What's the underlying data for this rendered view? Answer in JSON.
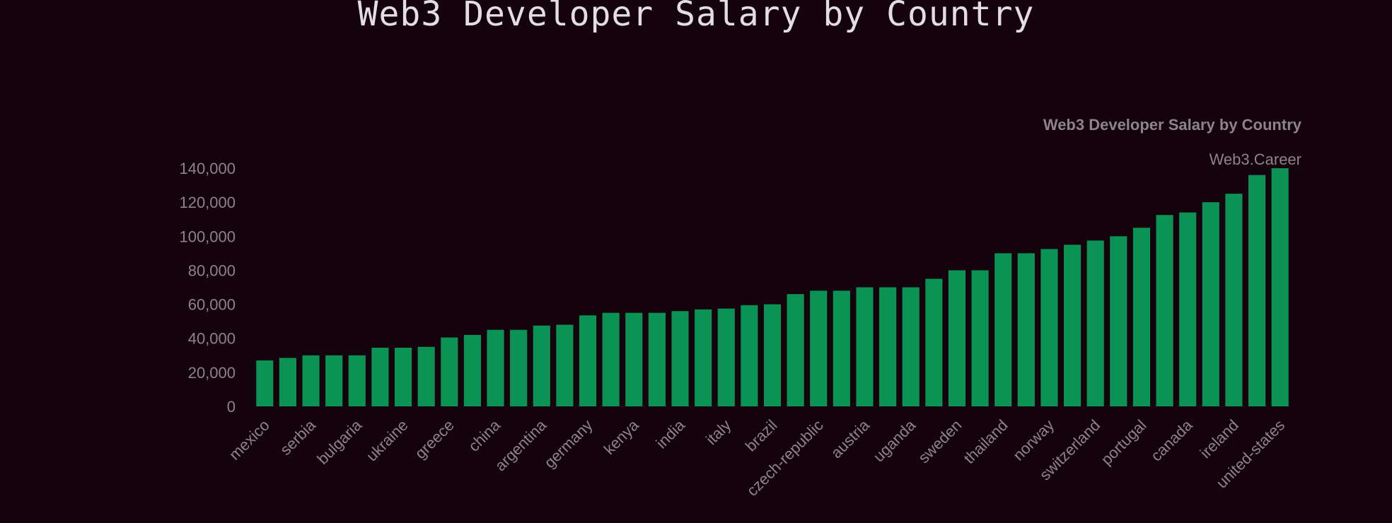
{
  "page": {
    "title": "Web3 Developer Salary by Country"
  },
  "colors": {
    "background": "#14020d",
    "bar": "#0a9354",
    "text": "#8c8488",
    "title": "#e3dee0"
  },
  "chart_data": {
    "type": "bar",
    "title": "Web3 Developer Salary by Country",
    "subtitle": "Web3.Career",
    "xlabel": "",
    "ylabel": "",
    "ylim": [
      0,
      140000
    ],
    "yticks": [
      0,
      20000,
      40000,
      60000,
      80000,
      100000,
      120000,
      140000
    ],
    "ytick_labels": [
      "0",
      "20,000",
      "40,000",
      "60,000",
      "80,000",
      "100,000",
      "120,000",
      "140,000"
    ],
    "grid": false,
    "legend": "none",
    "labeled_every": 2,
    "categories": [
      "mexico",
      "",
      "serbia",
      "",
      "bulgaria",
      "",
      "ukraine",
      "",
      "greece",
      "",
      "china",
      "",
      "argentina",
      "",
      "germany",
      "",
      "kenya",
      "",
      "india",
      "",
      "italy",
      "",
      "brazil",
      "",
      "czech-republic",
      "",
      "austria",
      "",
      "uganda",
      "",
      "sweden",
      "",
      "thailand",
      "",
      "norway",
      "",
      "switzerland",
      "",
      "portugal",
      "",
      "canada",
      "",
      "ireland",
      "",
      "united-states"
    ],
    "values": [
      27000,
      28500,
      30000,
      30000,
      30000,
      34500,
      34500,
      35000,
      40500,
      42000,
      45000,
      45000,
      47500,
      48000,
      53500,
      55000,
      55000,
      55000,
      56000,
      57000,
      57500,
      59500,
      60000,
      66000,
      68000,
      68000,
      70000,
      70000,
      70000,
      75000,
      80000,
      80000,
      90000,
      90000,
      92500,
      95000,
      97500,
      100000,
      105000,
      112500,
      114000,
      120000,
      125000,
      136000,
      140000
    ]
  }
}
